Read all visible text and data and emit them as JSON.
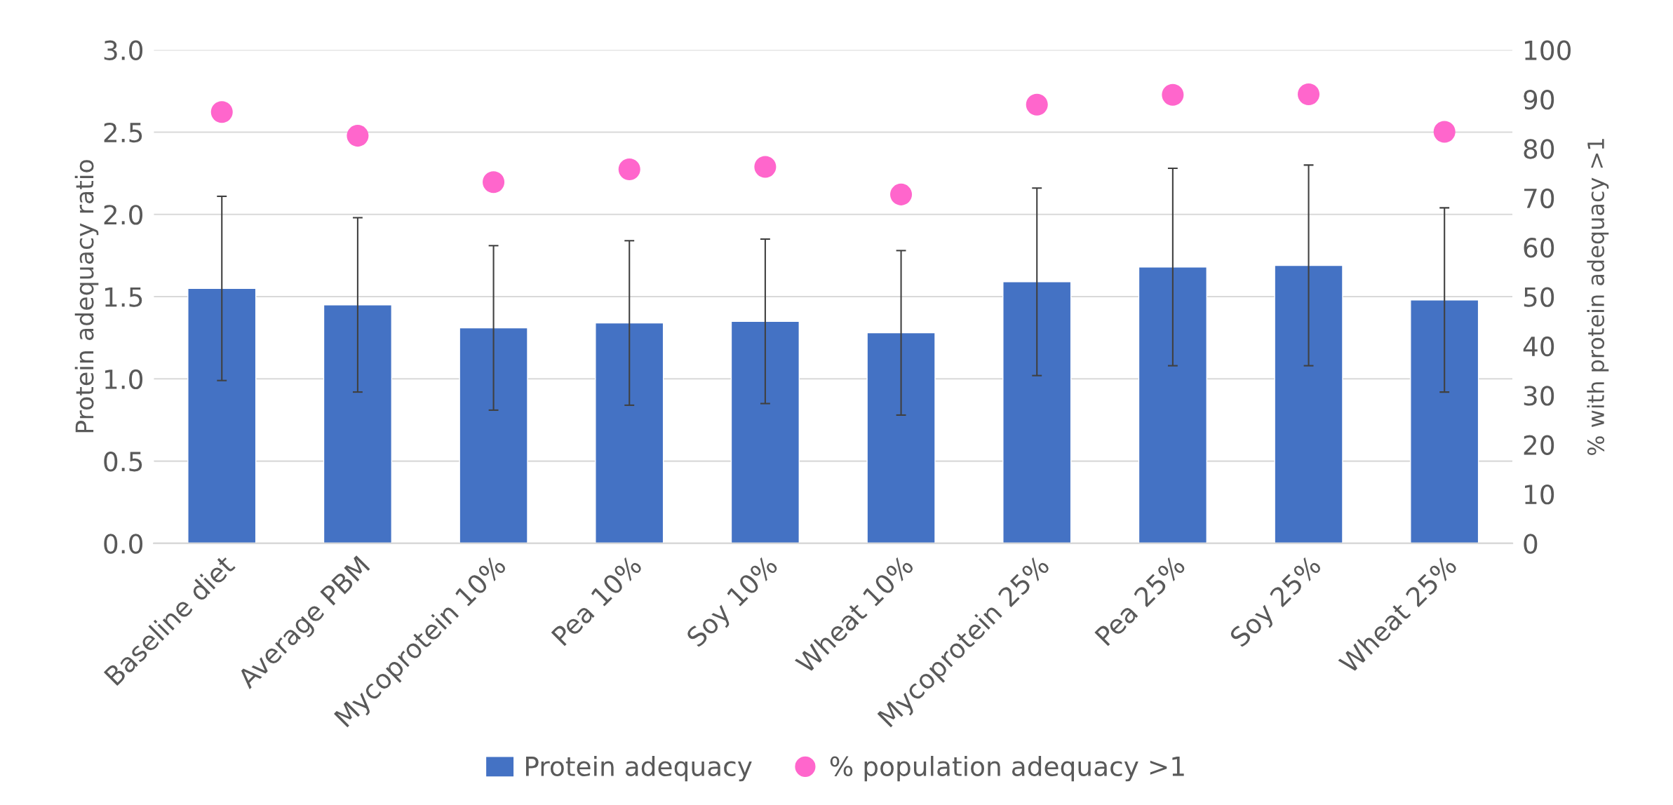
{
  "chart_data": {
    "type": "bar",
    "ylabel": "Protein adequacy ratio",
    "y2label": "% with protein adequacy >1",
    "categories": [
      "Baseline diet",
      "Average PBM",
      "Mycoprotein 10%",
      "Pea 10%",
      "Soy 10%",
      "Wheat 10%",
      "Mycoprotein 25%",
      "Pea 25%",
      "Soy 25%",
      "Wheat 25%"
    ],
    "series": [
      {
        "name": "Protein adequacy",
        "color": "#4472c4",
        "values": [
          1.55,
          1.45,
          1.31,
          1.34,
          1.35,
          1.28,
          1.59,
          1.68,
          1.69,
          1.48
        ],
        "errors": [
          0.56,
          0.53,
          0.5,
          0.5,
          0.5,
          0.5,
          0.57,
          0.6,
          0.61,
          0.56
        ]
      },
      {
        "name": "% population adequacy >1",
        "type": "scatter",
        "axis": "y2",
        "color": "#ff66cc",
        "marker": "circle",
        "values": [
          87.4,
          82.6,
          73.2,
          75.8,
          76.3,
          70.7,
          88.9,
          90.9,
          91.0,
          83.4
        ]
      }
    ],
    "ylim": [
      0,
      3
    ],
    "yticks": [
      {
        "value": 0,
        "label": "0.0"
      },
      {
        "value": 0.5,
        "label": "0.5"
      },
      {
        "value": 1,
        "label": "1.0"
      },
      {
        "value": 1.5,
        "label": "1.5"
      },
      {
        "value": 2,
        "label": "2.0"
      },
      {
        "value": 2.5,
        "label": "2.5"
      },
      {
        "value": 3,
        "label": "3.0"
      }
    ],
    "y2lim": [
      0,
      100
    ],
    "y2ticks": [
      0,
      10,
      20,
      30,
      40,
      50,
      60,
      70,
      80,
      90,
      100
    ],
    "grid": "y",
    "legend": "bottom"
  }
}
